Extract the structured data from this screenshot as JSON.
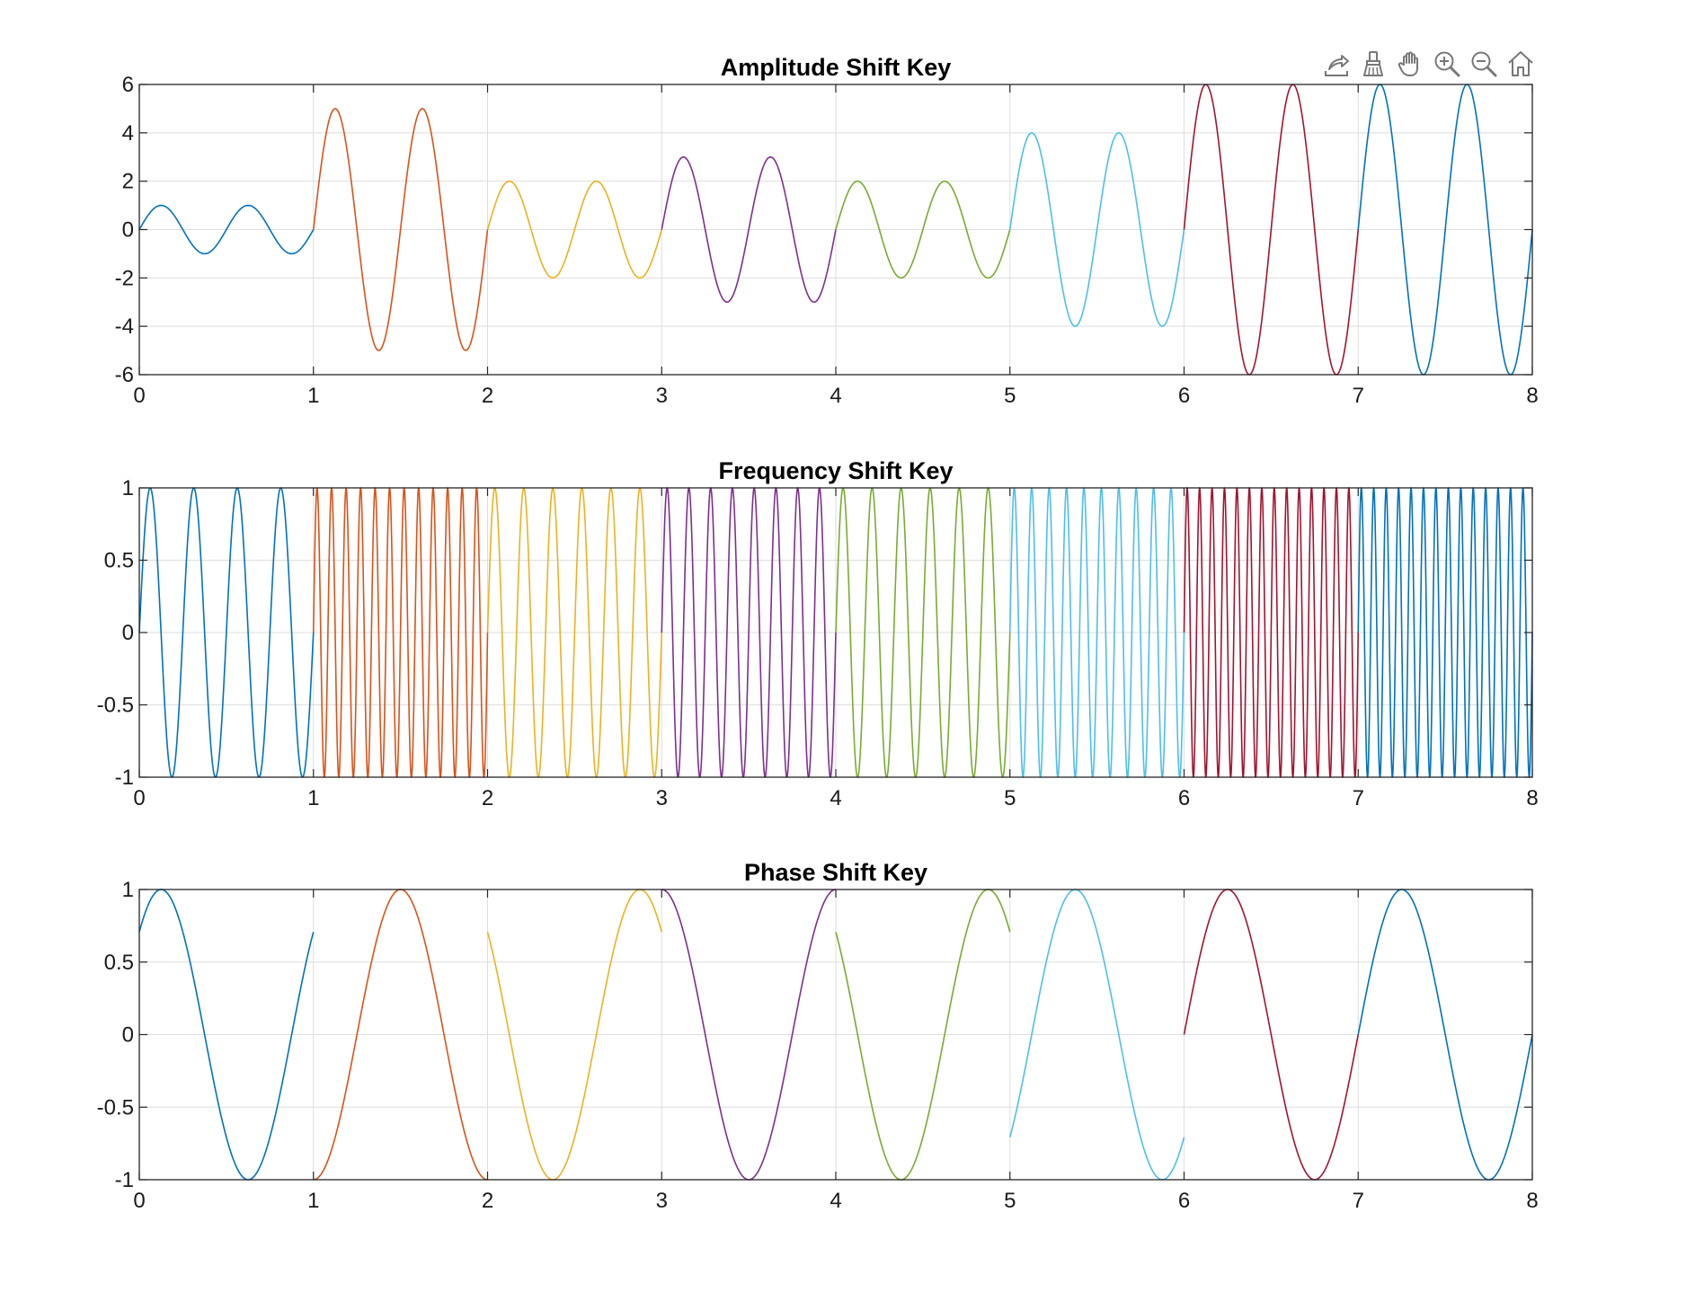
{
  "toolbar": {
    "buttons": [
      {
        "icon": "export-icon"
      },
      {
        "icon": "brush-icon"
      },
      {
        "icon": "pan-hand-icon"
      },
      {
        "icon": "zoom-in-icon"
      },
      {
        "icon": "zoom-out-icon"
      },
      {
        "icon": "home-icon"
      }
    ]
  },
  "colors": [
    "#0072BD",
    "#D95319",
    "#EDB120",
    "#7E2F8E",
    "#77AC30",
    "#4DBEEE",
    "#A2142F",
    "#0072BD"
  ],
  "chart_data": [
    {
      "type": "line",
      "title": "Amplitude Shift Key",
      "xlim": [
        0,
        8
      ],
      "ylim": [
        -6,
        6
      ],
      "xticks": [
        "0",
        "1",
        "2",
        "3",
        "4",
        "5",
        "6",
        "7",
        "8"
      ],
      "yticks": [
        "6",
        "4",
        "2",
        "0",
        "-2",
        "-4",
        "-6"
      ],
      "grid": true,
      "segments": [
        {
          "x": [
            0,
            1
          ],
          "amplitude": 1,
          "cycles_per_unit": 2,
          "phase_deg": 0
        },
        {
          "x": [
            1,
            2
          ],
          "amplitude": 5,
          "cycles_per_unit": 2,
          "phase_deg": 0
        },
        {
          "x": [
            2,
            3
          ],
          "amplitude": 2,
          "cycles_per_unit": 2,
          "phase_deg": 0
        },
        {
          "x": [
            3,
            4
          ],
          "amplitude": 3,
          "cycles_per_unit": 2,
          "phase_deg": 0
        },
        {
          "x": [
            4,
            5
          ],
          "amplitude": 2,
          "cycles_per_unit": 2,
          "phase_deg": 0
        },
        {
          "x": [
            5,
            6
          ],
          "amplitude": 4,
          "cycles_per_unit": 2,
          "phase_deg": 0
        },
        {
          "x": [
            6,
            7
          ],
          "amplitude": 6,
          "cycles_per_unit": 2,
          "phase_deg": 0
        },
        {
          "x": [
            7,
            8
          ],
          "amplitude": 6,
          "cycles_per_unit": 2,
          "phase_deg": 0
        }
      ]
    },
    {
      "type": "line",
      "title": "Frequency Shift Key",
      "xlim": [
        0,
        8
      ],
      "ylim": [
        -1,
        1
      ],
      "xticks": [
        "0",
        "1",
        "2",
        "3",
        "4",
        "5",
        "6",
        "7",
        "8"
      ],
      "yticks": [
        "1",
        "0.5",
        "0",
        "-0.5",
        "-1"
      ],
      "grid": true,
      "segments": [
        {
          "x": [
            0,
            1
          ],
          "amplitude": 1,
          "cycles_per_unit": 4,
          "phase_deg": 0
        },
        {
          "x": [
            1,
            2
          ],
          "amplitude": 1,
          "cycles_per_unit": 12,
          "phase_deg": 0
        },
        {
          "x": [
            2,
            3
          ],
          "amplitude": 1,
          "cycles_per_unit": 6,
          "phase_deg": 0
        },
        {
          "x": [
            3,
            4
          ],
          "amplitude": 1,
          "cycles_per_unit": 8,
          "phase_deg": 0
        },
        {
          "x": [
            4,
            5
          ],
          "amplitude": 1,
          "cycles_per_unit": 6,
          "phase_deg": 0
        },
        {
          "x": [
            5,
            6
          ],
          "amplitude": 1,
          "cycles_per_unit": 10,
          "phase_deg": 0
        },
        {
          "x": [
            6,
            7
          ],
          "amplitude": 1,
          "cycles_per_unit": 14,
          "phase_deg": 0
        },
        {
          "x": [
            7,
            8
          ],
          "amplitude": 1,
          "cycles_per_unit": 14,
          "phase_deg": 0
        }
      ]
    },
    {
      "type": "line",
      "title": "Phase Shift Key",
      "xlim": [
        0,
        8
      ],
      "ylim": [
        -1,
        1
      ],
      "xticks": [
        "0",
        "1",
        "2",
        "3",
        "4",
        "5",
        "6",
        "7",
        "8"
      ],
      "yticks": [
        "1",
        "0.5",
        "0",
        "-0.5",
        "-1"
      ],
      "grid": true,
      "segments": [
        {
          "x": [
            0,
            1
          ],
          "amplitude": 1,
          "cycles_per_unit": 1,
          "phase_deg": 45
        },
        {
          "x": [
            1,
            2
          ],
          "amplitude": 1,
          "cycles_per_unit": 1,
          "phase_deg": 270
        },
        {
          "x": [
            2,
            3
          ],
          "amplitude": 1,
          "cycles_per_unit": 1,
          "phase_deg": 135
        },
        {
          "x": [
            3,
            4
          ],
          "amplitude": 1,
          "cycles_per_unit": 1,
          "phase_deg": 90
        },
        {
          "x": [
            4,
            5
          ],
          "amplitude": 1,
          "cycles_per_unit": 1,
          "phase_deg": 135
        },
        {
          "x": [
            5,
            6
          ],
          "amplitude": 1,
          "cycles_per_unit": 1,
          "phase_deg": 315
        },
        {
          "x": [
            6,
            7
          ],
          "amplitude": 1,
          "cycles_per_unit": 1,
          "phase_deg": 0
        },
        {
          "x": [
            7,
            8
          ],
          "amplitude": 1,
          "cycles_per_unit": 1,
          "phase_deg": 0
        }
      ]
    }
  ]
}
